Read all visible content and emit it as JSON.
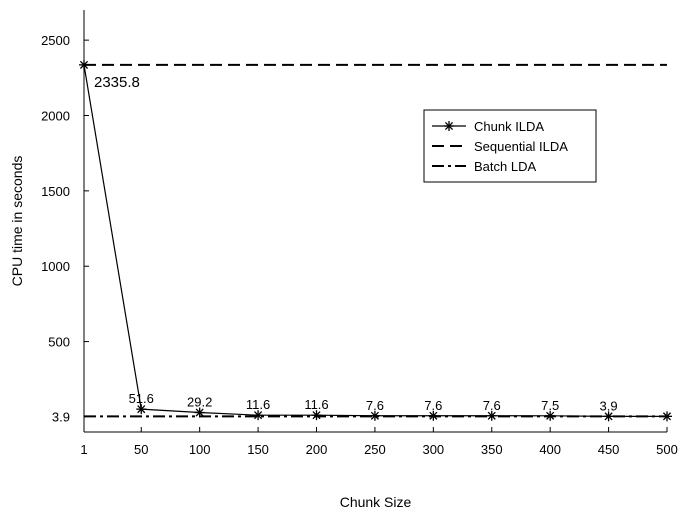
{
  "chart_data": {
    "type": "line",
    "xlabel": "Chunk Size",
    "ylabel": "CPU time in seconds",
    "x_ticks": [
      "1",
      "50",
      "100",
      "150",
      "200",
      "250",
      "300",
      "350",
      "400",
      "450",
      "500"
    ],
    "y_ticks": [
      "3.9",
      "500",
      "1000",
      "1500",
      "2000",
      "2500"
    ],
    "xlim": [
      1,
      500
    ],
    "ylim": [
      -100,
      2700
    ],
    "grid": false,
    "legend_position": "top-right",
    "series": [
      {
        "name": "Chunk ILDA",
        "style": "solid-star",
        "color": "#000000",
        "x": [
          1,
          50,
          100,
          150,
          200,
          250,
          300,
          350,
          400,
          450,
          500
        ],
        "y": [
          2335.8,
          51.6,
          29.2,
          11.6,
          11.6,
          7.6,
          7.6,
          7.6,
          7.5,
          3.9,
          3.9
        ],
        "labels": [
          "2335.8",
          "51.6",
          "29.2",
          "11.6",
          "11.6",
          "7.6",
          "7.6",
          "7.6",
          "7.5",
          "3.9",
          ""
        ]
      },
      {
        "name": "Sequential ILDA",
        "style": "dashed",
        "color": "#000000",
        "x": [
          1,
          500
        ],
        "y": [
          2335.8,
          2335.8
        ]
      },
      {
        "name": "Batch LDA",
        "style": "dash-dot",
        "color": "#000000",
        "x": [
          1,
          500
        ],
        "y": [
          3.9,
          3.9
        ]
      }
    ]
  }
}
